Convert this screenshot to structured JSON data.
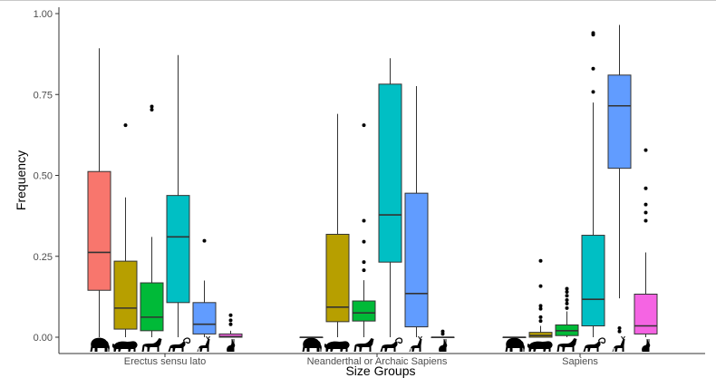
{
  "chart_data": {
    "type": "box",
    "xlabel": "Size Groups",
    "ylabel": "Frequency",
    "ylim": [
      0,
      1
    ],
    "grid": false,
    "legend": "none",
    "y_ticks": [
      "0.00",
      "0.25",
      "0.50",
      "0.75",
      "1.00"
    ],
    "y_tick_values": [
      0,
      0.25,
      0.5,
      0.75,
      1.0
    ],
    "categories": [
      "Erectus sensu lato",
      "Neanderthal or Archaic Sapiens",
      "Sapiens"
    ],
    "prey_classes": [
      {
        "icon": "elephant-icon",
        "color": "#F8766D"
      },
      {
        "icon": "bison-icon",
        "color": "#B79F00"
      },
      {
        "icon": "horse-icon",
        "color": "#00BA38"
      },
      {
        "icon": "ibex-icon",
        "color": "#00BFC4"
      },
      {
        "icon": "deer-icon",
        "color": "#619CFF"
      },
      {
        "icon": "hare-icon",
        "color": "#F564E3"
      }
    ],
    "groups": [
      {
        "name": "Erectus sensu lato",
        "boxes": [
          {
            "min": 0.0,
            "q1": 0.145,
            "median": 0.262,
            "q3": 0.512,
            "max": 0.893,
            "outliers": []
          },
          {
            "min": 0.0,
            "q1": 0.025,
            "median": 0.09,
            "q3": 0.235,
            "max": 0.432,
            "outliers": [
              0.655
            ]
          },
          {
            "min": 0.0,
            "q1": 0.02,
            "median": 0.062,
            "q3": 0.168,
            "max": 0.31,
            "outliers": [
              0.703,
              0.713
            ]
          },
          {
            "min": 0.0,
            "q1": 0.107,
            "median": 0.31,
            "q3": 0.438,
            "max": 0.872,
            "outliers": []
          },
          {
            "min": 0.0,
            "q1": 0.01,
            "median": 0.04,
            "q3": 0.107,
            "max": 0.175,
            "outliers": [
              0.298
            ]
          },
          {
            "min": 0.0,
            "q1": 0.0,
            "median": 0.002,
            "q3": 0.01,
            "max": 0.02,
            "outliers": [
              0.04,
              0.052,
              0.068
            ]
          }
        ]
      },
      {
        "name": "Neanderthal or Archaic Sapiens",
        "boxes": [
          {
            "min": 0.0,
            "q1": 0.0,
            "median": 0.0,
            "q3": 0.0,
            "max": 0.0,
            "outliers": []
          },
          {
            "min": 0.0,
            "q1": 0.048,
            "median": 0.093,
            "q3": 0.318,
            "max": 0.69,
            "outliers": []
          },
          {
            "min": 0.0,
            "q1": 0.05,
            "median": 0.075,
            "q3": 0.112,
            "max": 0.176,
            "outliers": [
              0.207,
              0.232,
              0.295,
              0.36,
              0.655
            ]
          },
          {
            "min": 0.0,
            "q1": 0.232,
            "median": 0.378,
            "q3": 0.782,
            "max": 0.862,
            "outliers": []
          },
          {
            "min": 0.0,
            "q1": 0.032,
            "median": 0.135,
            "q3": 0.445,
            "max": 0.776,
            "outliers": []
          },
          {
            "min": 0.0,
            "q1": 0.0,
            "median": 0.0,
            "q3": 0.0,
            "max": 0.0,
            "outliers": [
              0.01,
              0.018
            ]
          }
        ]
      },
      {
        "name": "Sapiens",
        "boxes": [
          {
            "min": 0.0,
            "q1": 0.0,
            "median": 0.0,
            "q3": 0.0,
            "max": 0.0,
            "outliers": []
          },
          {
            "min": 0.0,
            "q1": 0.0,
            "median": 0.005,
            "q3": 0.015,
            "max": 0.035,
            "outliers": [
              0.05,
              0.062,
              0.088,
              0.097,
              0.158,
              0.236
            ]
          },
          {
            "min": 0.0,
            "q1": 0.005,
            "median": 0.02,
            "q3": 0.038,
            "max": 0.08,
            "outliers": [
              0.09,
              0.104,
              0.115,
              0.128,
              0.14,
              0.15
            ]
          },
          {
            "min": 0.0,
            "q1": 0.035,
            "median": 0.117,
            "q3": 0.315,
            "max": 0.725,
            "outliers": [
              0.758,
              0.83,
              0.935,
              0.94
            ]
          },
          {
            "min": 0.12,
            "q1": 0.522,
            "median": 0.715,
            "q3": 0.81,
            "max": 0.965,
            "outliers": [
              0.018,
              0.028
            ]
          },
          {
            "min": 0.0,
            "q1": 0.01,
            "median": 0.035,
            "q3": 0.133,
            "max": 0.262,
            "outliers": [
              0.36,
              0.385,
              0.41,
              0.46,
              0.578
            ]
          }
        ]
      }
    ]
  }
}
